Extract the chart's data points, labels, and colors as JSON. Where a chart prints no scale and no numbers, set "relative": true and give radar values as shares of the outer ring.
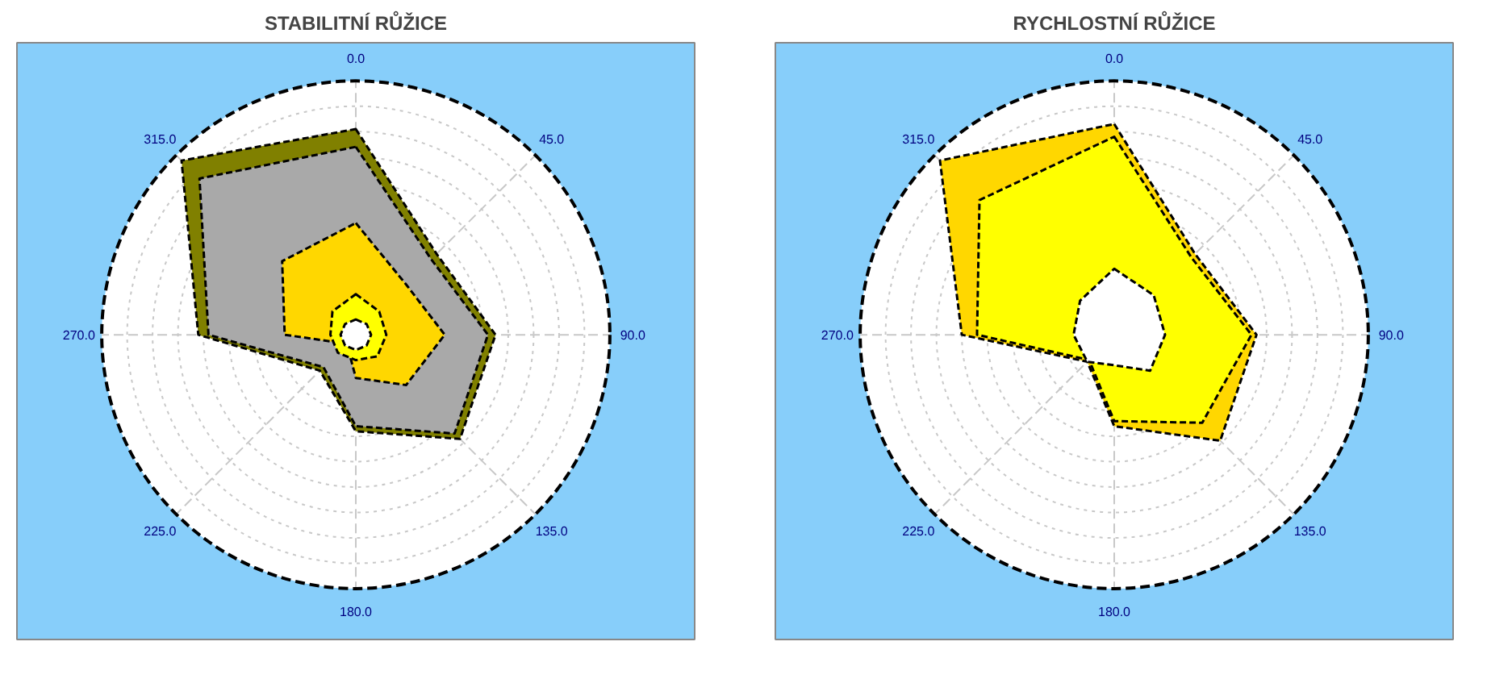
{
  "chart_data": [
    {
      "type": "radar",
      "title": "STABILITNÍ RŮŽICE",
      "relative": true,
      "grid": true,
      "categories": [
        "0.0",
        "45.0",
        "90.0",
        "135.0",
        "180.0",
        "225.0",
        "270.0",
        "315.0"
      ],
      "series": [
        {
          "color": "#808000",
          "values": [
            0.81,
            0.45,
            0.55,
            0.58,
            0.38,
            0.2,
            0.62,
            0.97
          ]
        },
        {
          "color": "#a9a9a9",
          "values": [
            0.74,
            0.42,
            0.52,
            0.55,
            0.36,
            0.18,
            0.58,
            0.87
          ]
        },
        {
          "color": "#ffd700",
          "values": [
            0.44,
            0.28,
            0.35,
            0.28,
            0.17,
            0.05,
            0.28,
            0.41
          ]
        },
        {
          "color": "#ffff00",
          "values": [
            0.16,
            0.13,
            0.12,
            0.12,
            0.1,
            0.1,
            0.1,
            0.13
          ]
        },
        {
          "color": "#ffffff",
          "values": [
            0.06,
            0.06,
            0.06,
            0.06,
            0.06,
            0.06,
            0.06,
            0.06
          ]
        }
      ]
    },
    {
      "type": "radar",
      "title": "RYCHLOSTNÍ RŮŽICE",
      "relative": true,
      "grid": true,
      "categories": [
        "0.0",
        "45.0",
        "90.0",
        "135.0",
        "180.0",
        "225.0",
        "270.0",
        "315.0"
      ],
      "series": [
        {
          "color": "#ffd700",
          "values": [
            0.83,
            0.45,
            0.56,
            0.59,
            0.36,
            0.15,
            0.6,
            0.97
          ]
        },
        {
          "color": "#ffff00",
          "values": [
            0.78,
            0.43,
            0.54,
            0.49,
            0.34,
            0.14,
            0.54,
            0.75
          ]
        },
        {
          "color": "#ffffff",
          "values": [
            0.26,
            0.22,
            0.2,
            0.2,
            0.12,
            0.15,
            0.16,
            0.19
          ]
        }
      ]
    }
  ]
}
